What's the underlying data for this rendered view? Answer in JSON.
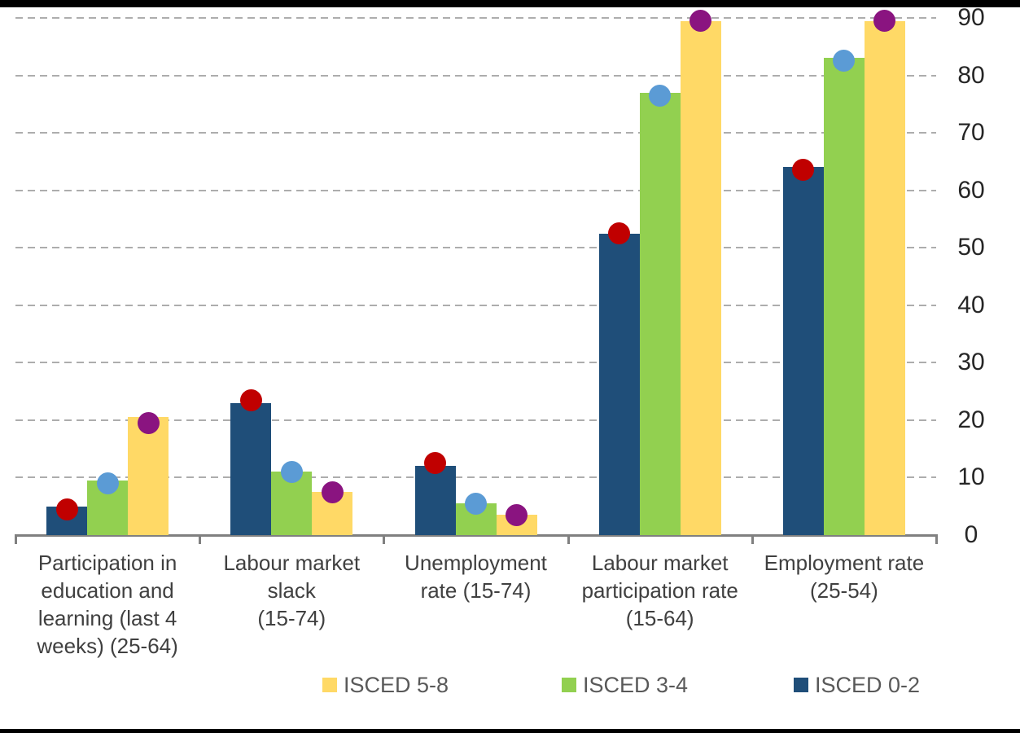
{
  "page": {
    "background_color": "#FFFFFF",
    "top_border_color": "#000000",
    "bottom_border_color": "#000000"
  },
  "chart_data": {
    "type": "bar",
    "title": "",
    "xlabel": "",
    "ylabel": "",
    "ylim": [
      0,
      90
    ],
    "yticks": [
      0,
      10,
      20,
      30,
      40,
      50,
      60,
      70,
      80,
      90
    ],
    "y_axis_side": "right",
    "grid": "horizontal-dashed",
    "gridline_color": "#ADADAD",
    "axis_line_color": "#808080",
    "categories": [
      "Participation in education and learning (last 4 weeks) (25-64)",
      "Labour market slack (15-74)",
      "Unemployment rate (15-74)",
      "Labour market participation rate (15-64)",
      "Employment rate (25-54)"
    ],
    "category_lines": [
      [
        "Participation in",
        "education and",
        "learning (last 4",
        "weeks) (25-64)"
      ],
      [
        "Labour market slack",
        "(15-74)"
      ],
      [
        "Unemployment",
        "rate (15-74)"
      ],
      [
        "Labour market",
        "participation rate",
        "(15-64)"
      ],
      [
        "Employment rate",
        "(25-54)"
      ]
    ],
    "bar_series": [
      {
        "name": "ISCED 0-2",
        "color": "#1F4E79",
        "values": [
          5,
          23,
          12,
          52.5,
          64
        ]
      },
      {
        "name": "ISCED 3-4",
        "color": "#92D050",
        "values": [
          9.5,
          11,
          5.5,
          77,
          83
        ]
      },
      {
        "name": "ISCED 5-8",
        "color": "#FFD966",
        "values": [
          20.5,
          7.5,
          3.5,
          89.5,
          89.5
        ]
      }
    ],
    "marker_series": [
      {
        "name": "red-dot",
        "color": "#C00000",
        "on_bar_series": "ISCED 0-2",
        "values": [
          4.5,
          23.5,
          12.5,
          52.5,
          63.5
        ]
      },
      {
        "name": "blue-dot",
        "color": "#5B9BD5",
        "on_bar_series": "ISCED 3-4",
        "values": [
          9,
          11,
          5.5,
          76.5,
          82.5
        ]
      },
      {
        "name": "purple-dot",
        "color": "#8A1480",
        "on_bar_series": "ISCED 5-8",
        "values": [
          19.5,
          7.5,
          3.5,
          89.5,
          89.5
        ]
      }
    ],
    "legend": [
      {
        "label": "ISCED 5-8",
        "color": "#FFD966"
      },
      {
        "label": "ISCED 3-4",
        "color": "#92D050"
      },
      {
        "label": "ISCED 0-2",
        "color": "#1F4E79"
      }
    ],
    "legend_position": "bottom"
  }
}
